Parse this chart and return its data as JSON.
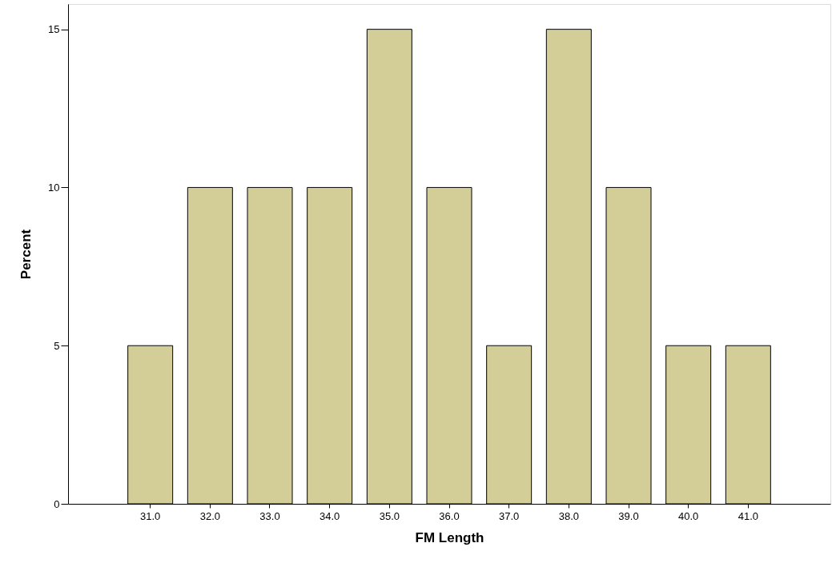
{
  "chart_data": {
    "type": "bar",
    "xlabel": "FM Length",
    "ylabel": "Percent",
    "categories": [
      "31.0",
      "32.0",
      "33.0",
      "34.0",
      "35.0",
      "36.0",
      "37.0",
      "38.0",
      "39.0",
      "40.0",
      "41.0"
    ],
    "values": [
      5,
      10,
      10,
      10,
      15,
      10,
      5,
      15,
      10,
      5,
      5
    ],
    "color": "#d3ce97",
    "ylim": [
      0,
      15.8
    ],
    "yticks": [
      0,
      5,
      10,
      15
    ],
    "grid": false
  }
}
